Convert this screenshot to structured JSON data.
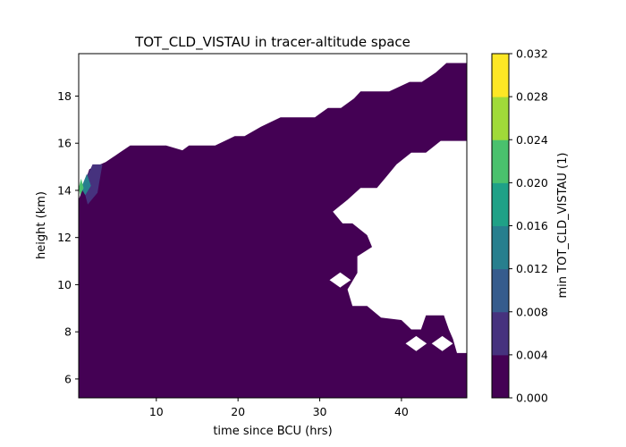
{
  "chart_data": {
    "type": "contour",
    "title": "TOT_CLD_VISTAU in tracer-altitude space",
    "xlabel": "time since BCU (hrs)",
    "ylabel": "height (km)",
    "xlim": [
      0.5,
      48
    ],
    "ylim": [
      5.2,
      19.8
    ],
    "x_ticks": [
      10,
      20,
      30,
      40
    ],
    "y_ticks": [
      6,
      8,
      10,
      12,
      14,
      16,
      18
    ],
    "grid": false,
    "colorbar": {
      "label": "min TOT_CLD_VISTAU (1)",
      "levels": [
        0.0,
        0.004,
        0.008,
        0.012,
        0.016,
        0.02,
        0.024,
        0.028,
        0.032
      ],
      "tick_labels": [
        "0.000",
        "0.004",
        "0.008",
        "0.012",
        "0.016",
        "0.020",
        "0.024",
        "0.028",
        "0.032"
      ],
      "colors": [
        "#440154",
        "#46327e",
        "#365c8d",
        "#277f8e",
        "#1fa187",
        "#4ac16d",
        "#a0da39",
        "#fde725"
      ]
    },
    "filled_regions": [
      {
        "level_index": 0,
        "description": "main cloud region, value 0.000-0.004",
        "outline": [
          [
            0.5,
            5.2
          ],
          [
            48,
            5.2
          ],
          [
            48,
            7.1
          ],
          [
            46.8,
            7.1
          ],
          [
            46.3,
            7.7
          ],
          [
            45.8,
            8.1
          ],
          [
            45.2,
            8.7
          ],
          [
            43.0,
            8.7
          ],
          [
            42.4,
            8.1
          ],
          [
            41.2,
            8.1
          ],
          [
            40.0,
            8.5
          ],
          [
            37.5,
            8.6
          ],
          [
            35.8,
            9.1
          ],
          [
            34.0,
            9.1
          ],
          [
            33.4,
            9.8
          ],
          [
            34.6,
            10.5
          ],
          [
            34.6,
            11.2
          ],
          [
            36.4,
            11.6
          ],
          [
            35.8,
            12.1
          ],
          [
            34.0,
            12.6
          ],
          [
            32.8,
            12.6
          ],
          [
            31.6,
            13.1
          ],
          [
            33.4,
            13.6
          ],
          [
            35.0,
            14.1
          ],
          [
            37.0,
            14.1
          ],
          [
            38.2,
            14.6
          ],
          [
            39.4,
            15.1
          ],
          [
            41.2,
            15.6
          ],
          [
            43.0,
            15.6
          ],
          [
            44.8,
            16.1
          ],
          [
            48,
            16.1
          ],
          [
            48,
            19.4
          ],
          [
            45.5,
            19.4
          ],
          [
            44.2,
            19.0
          ],
          [
            42.5,
            18.6
          ],
          [
            41.0,
            18.6
          ],
          [
            38.5,
            18.2
          ],
          [
            35.0,
            18.2
          ],
          [
            34.2,
            17.9
          ],
          [
            32.6,
            17.5
          ],
          [
            31.0,
            17.5
          ],
          [
            29.4,
            17.1
          ],
          [
            25.2,
            17.1
          ],
          [
            22.8,
            16.7
          ],
          [
            20.8,
            16.3
          ],
          [
            19.6,
            16.3
          ],
          [
            17.2,
            15.9
          ],
          [
            14.0,
            15.9
          ],
          [
            13.2,
            15.7
          ],
          [
            11.2,
            15.9
          ],
          [
            9.0,
            15.9
          ],
          [
            6.8,
            15.9
          ],
          [
            5.5,
            15.6
          ],
          [
            3.8,
            15.2
          ],
          [
            1.8,
            14.9
          ],
          [
            0.5,
            13.6
          ]
        ],
        "holes": [
          {
            "center": [
              32.5,
              10.2
            ]
          },
          {
            "center": [
              41.8,
              7.5
            ]
          },
          {
            "center": [
              45.0,
              7.5
            ]
          }
        ]
      },
      {
        "level_index": 1,
        "description": "0.004-0.008",
        "outline": [
          [
            1.0,
            14.2
          ],
          [
            2.2,
            15.1
          ],
          [
            3.4,
            15.1
          ],
          [
            2.8,
            13.9
          ],
          [
            1.6,
            13.4
          ]
        ]
      },
      {
        "level_index": 3,
        "description": "0.012-0.016",
        "outline": [
          [
            0.8,
            14.1
          ],
          [
            1.5,
            14.7
          ],
          [
            2.0,
            14.2
          ],
          [
            1.3,
            13.8
          ]
        ]
      },
      {
        "level_index": 5,
        "description": "0.020-0.024",
        "outline": [
          [
            0.5,
            14.1
          ],
          [
            0.8,
            14.5
          ],
          [
            1.1,
            14.1
          ],
          [
            0.7,
            13.8
          ]
        ]
      }
    ]
  }
}
